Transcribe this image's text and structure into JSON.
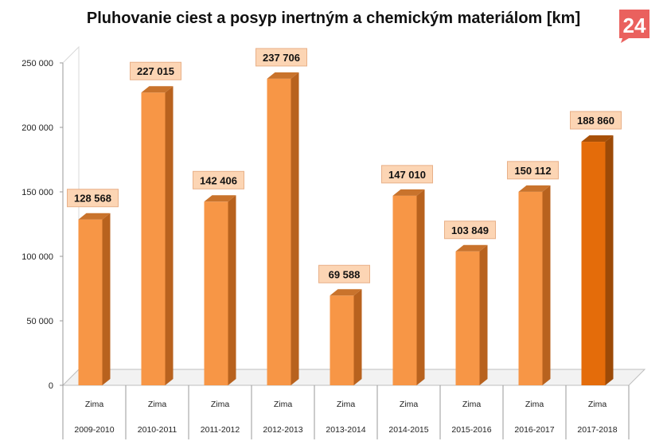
{
  "chart_data": {
    "type": "bar",
    "title": "Pluhovanie ciest a posyp inertným a chemickým materiálom [km]",
    "xlabel": "",
    "ylabel": "",
    "ylim": [
      0,
      250000
    ],
    "yticks": [
      0,
      50000,
      100000,
      150000,
      200000,
      250000
    ],
    "ytick_labels": [
      "0",
      "50 000",
      "100 000",
      "150 000",
      "200 000",
      "250 000"
    ],
    "categories": [
      {
        "line1": "Zima",
        "line2": "2009-2010"
      },
      {
        "line1": "Zima",
        "line2": "2010-2011"
      },
      {
        "line1": "Zima",
        "line2": "2011-2012"
      },
      {
        "line1": "Zima",
        "line2": "2012-2013"
      },
      {
        "line1": "Zima",
        "line2": "2013-2014"
      },
      {
        "line1": "Zima",
        "line2": "2014-2015"
      },
      {
        "line1": "Zima",
        "line2": "2015-2016"
      },
      {
        "line1": "Zima",
        "line2": "2016-2017"
      },
      {
        "line1": "Zima",
        "line2": "2017-2018"
      }
    ],
    "values": [
      128568,
      227015,
      142406,
      237706,
      69588,
      147010,
      103849,
      150112,
      188860
    ],
    "value_labels": [
      "128 568",
      "227 015",
      "142 406",
      "237 706",
      "69 588",
      "147 010",
      "103 849",
      "150 112",
      "188 860"
    ],
    "highlight_index": 8,
    "grid": false,
    "colors": {
      "bar": "#f79646",
      "bar_side": "#b8621e",
      "bar_top": "#c9732c",
      "bar_highlight": "#e46c0a",
      "bar_highlight_side": "#9c4a07",
      "bar_highlight_top": "#a85008",
      "label_box": "#fcd5b4",
      "label_box_border": "#e8b088"
    }
  },
  "logo": {
    "text": "24",
    "color": "#e8504d"
  }
}
